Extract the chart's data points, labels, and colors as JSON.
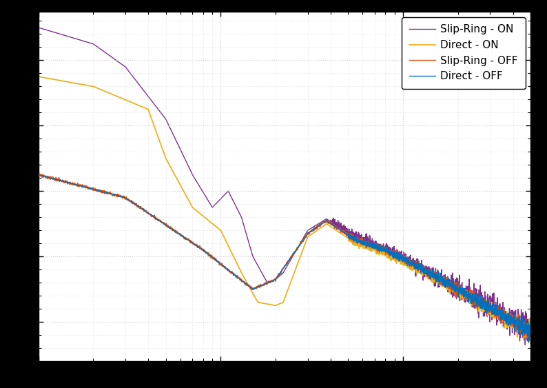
{
  "title": "",
  "xlabel": "",
  "ylabel": "",
  "colors": {
    "direct_off": "#0072BD",
    "slipring_off": "#D95319",
    "direct_on": "#EDB120",
    "slipring_on": "#7E2F8E"
  },
  "legend_labels": [
    "Direct - OFF",
    "Slip-Ring - OFF",
    "Direct - ON",
    "Slip-Ring - ON"
  ],
  "plot_bg": "#ffffff",
  "fig_bg": "#000000",
  "axes_color": "#000000",
  "grid_color": "#cccccc",
  "figsize": [
    7.94,
    5.63
  ],
  "dpi": 100,
  "xlim": [
    1,
    500
  ],
  "ylim_auto": true
}
